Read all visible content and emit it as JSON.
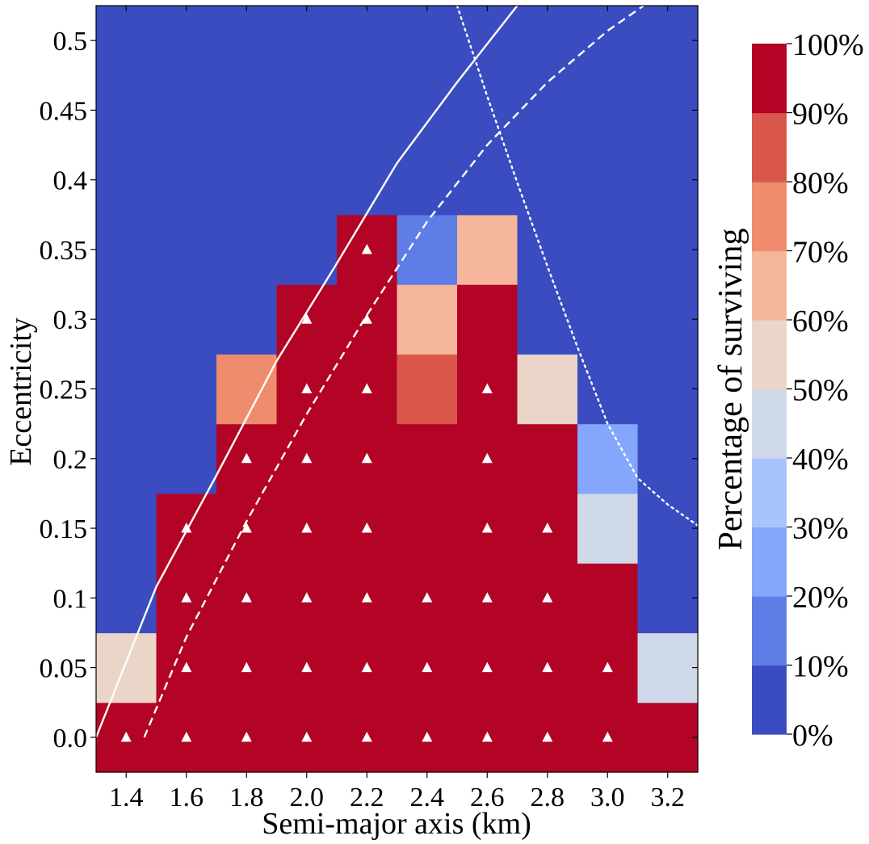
{
  "chart_data": {
    "type": "heatmap",
    "title": "",
    "xlabel": "Semi-major axis (km)",
    "ylabel": "Eccentricity",
    "x_values": [
      1.4,
      1.6,
      1.8,
      2.0,
      2.2,
      2.4,
      2.6,
      2.8,
      3.0,
      3.2
    ],
    "y_values": [
      0.0,
      0.05,
      0.1,
      0.15,
      0.2,
      0.25,
      0.3,
      0.35,
      0.4,
      0.45,
      0.5
    ],
    "x_ticks": [
      "1.4",
      "1.6",
      "1.8",
      "2.0",
      "2.2",
      "2.4",
      "2.6",
      "2.8",
      "3.0",
      "3.2"
    ],
    "y_ticks": [
      "0.0",
      "0.05",
      "0.1",
      "0.15",
      "0.2",
      "0.25",
      "0.3",
      "0.35",
      "0.4",
      "0.45",
      "0.5"
    ],
    "xlim": [
      1.3,
      3.3
    ],
    "ylim": [
      -0.025,
      0.525
    ],
    "grid": [
      [
        95,
        95,
        95,
        95,
        95,
        95,
        95,
        95,
        95,
        95
      ],
      [
        55,
        95,
        95,
        95,
        95,
        95,
        95,
        95,
        95,
        45
      ],
      [
        5,
        95,
        95,
        95,
        95,
        95,
        95,
        95,
        95,
        5
      ],
      [
        5,
        95,
        95,
        95,
        95,
        95,
        95,
        95,
        45,
        5
      ],
      [
        5,
        5,
        95,
        95,
        95,
        95,
        95,
        95,
        25,
        5
      ],
      [
        5,
        5,
        75,
        95,
        95,
        85,
        95,
        55,
        5,
        5
      ],
      [
        5,
        5,
        5,
        95,
        95,
        65,
        95,
        5,
        5,
        5
      ],
      [
        5,
        5,
        5,
        5,
        95,
        15,
        65,
        5,
        5,
        5
      ],
      [
        5,
        5,
        5,
        5,
        5,
        5,
        5,
        5,
        5,
        5
      ],
      [
        5,
        5,
        5,
        5,
        5,
        5,
        5,
        5,
        5,
        5
      ],
      [
        5,
        5,
        5,
        5,
        5,
        5,
        5,
        5,
        5,
        5
      ]
    ],
    "stable_markers": [
      [
        1.4,
        0.0
      ],
      [
        1.6,
        0.0
      ],
      [
        1.8,
        0.0
      ],
      [
        2.0,
        0.0
      ],
      [
        2.2,
        0.0
      ],
      [
        2.4,
        0.0
      ],
      [
        2.6,
        0.0
      ],
      [
        2.8,
        0.0
      ],
      [
        3.0,
        0.0
      ],
      [
        1.6,
        0.05
      ],
      [
        1.8,
        0.05
      ],
      [
        2.0,
        0.05
      ],
      [
        2.2,
        0.05
      ],
      [
        2.4,
        0.05
      ],
      [
        2.6,
        0.05
      ],
      [
        2.8,
        0.05
      ],
      [
        3.0,
        0.05
      ],
      [
        1.6,
        0.1
      ],
      [
        1.8,
        0.1
      ],
      [
        2.0,
        0.1
      ],
      [
        2.2,
        0.1
      ],
      [
        2.4,
        0.1
      ],
      [
        2.6,
        0.1
      ],
      [
        2.8,
        0.1
      ],
      [
        1.6,
        0.15
      ],
      [
        1.8,
        0.15
      ],
      [
        2.0,
        0.15
      ],
      [
        2.2,
        0.15
      ],
      [
        2.6,
        0.15
      ],
      [
        2.8,
        0.15
      ],
      [
        1.8,
        0.2
      ],
      [
        2.0,
        0.2
      ],
      [
        2.2,
        0.2
      ],
      [
        2.6,
        0.2
      ],
      [
        2.0,
        0.25
      ],
      [
        2.2,
        0.25
      ],
      [
        2.6,
        0.25
      ],
      [
        2.0,
        0.3
      ],
      [
        2.2,
        0.3
      ],
      [
        2.2,
        0.35
      ]
    ],
    "curves": [
      {
        "name": "solid",
        "style": "solid",
        "points": [
          [
            1.3,
            0.0
          ],
          [
            1.5,
            0.108
          ],
          [
            1.7,
            0.188
          ],
          [
            1.9,
            0.27
          ],
          [
            2.1,
            0.34
          ],
          [
            2.3,
            0.412
          ],
          [
            2.5,
            0.47
          ],
          [
            2.7,
            0.525
          ]
        ]
      },
      {
        "name": "dashed",
        "style": "dashed",
        "points": [
          [
            1.46,
            0.0
          ],
          [
            1.6,
            0.072
          ],
          [
            1.8,
            0.155
          ],
          [
            2.0,
            0.232
          ],
          [
            2.2,
            0.303
          ],
          [
            2.4,
            0.37
          ],
          [
            2.6,
            0.425
          ],
          [
            2.8,
            0.47
          ],
          [
            3.0,
            0.507
          ],
          [
            3.12,
            0.525
          ]
        ]
      },
      {
        "name": "dotted",
        "style": "dotted",
        "points": [
          [
            2.5,
            0.525
          ],
          [
            2.6,
            0.46
          ],
          [
            2.7,
            0.398
          ],
          [
            2.8,
            0.338
          ],
          [
            2.9,
            0.28
          ],
          [
            3.0,
            0.225
          ],
          [
            3.1,
            0.186
          ],
          [
            3.2,
            0.167
          ],
          [
            3.3,
            0.152
          ]
        ]
      }
    ],
    "colorbar": {
      "label": "Percentage of surviving",
      "ticks": [
        "0%",
        "10%",
        "20%",
        "30%",
        "40%",
        "50%",
        "60%",
        "70%",
        "80%",
        "90%",
        "100%"
      ],
      "colors": [
        "#3b4cc0",
        "#5e7de7",
        "#84a7fc",
        "#a8c4fd",
        "#cfd9ea",
        "#ebd4c8",
        "#f6b69b",
        "#f08c6e",
        "#d9574a",
        "#b40426"
      ]
    }
  }
}
